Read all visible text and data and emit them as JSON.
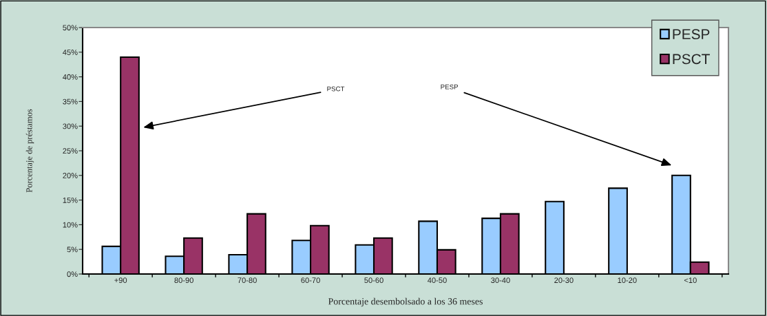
{
  "chart_data": {
    "type": "bar",
    "xlabel": "Porcentaje desembolsado a los 36 meses",
    "ylabel": "Porcentaje de préstamos",
    "categories": [
      "+90",
      "80-90",
      "70-80",
      "60-70",
      "50-60",
      "40-50",
      "30-40",
      "20-30",
      "10-20",
      "<10"
    ],
    "series": [
      {
        "name": "PESP",
        "color": "#99ccff",
        "values": [
          5.6,
          3.6,
          3.9,
          6.8,
          5.9,
          10.7,
          11.3,
          14.7,
          17.4,
          20.0
        ]
      },
      {
        "name": "PSCT",
        "color": "#993366",
        "values": [
          44.0,
          7.3,
          12.2,
          9.8,
          7.3,
          4.9,
          12.2,
          null,
          null,
          2.4
        ]
      }
    ],
    "ylim": [
      0,
      50
    ],
    "yticks": [
      {
        "value": 0,
        "label": "0%"
      },
      {
        "value": 5,
        "label": "5%"
      },
      {
        "value": 10,
        "label": "10%"
      },
      {
        "value": 15,
        "label": "15%"
      },
      {
        "value": 20,
        "label": "20%"
      },
      {
        "value": 25,
        "label": "25%"
      },
      {
        "value": 30,
        "label": "30%"
      },
      {
        "value": 35,
        "label": "35%"
      },
      {
        "value": 40,
        "label": "40%"
      },
      {
        "value": 45,
        "label": "45%"
      },
      {
        "value": 50,
        "label": "50%"
      }
    ],
    "annotations": [
      "PSCT",
      "PESP"
    ],
    "legend": "top right",
    "grid": false
  }
}
